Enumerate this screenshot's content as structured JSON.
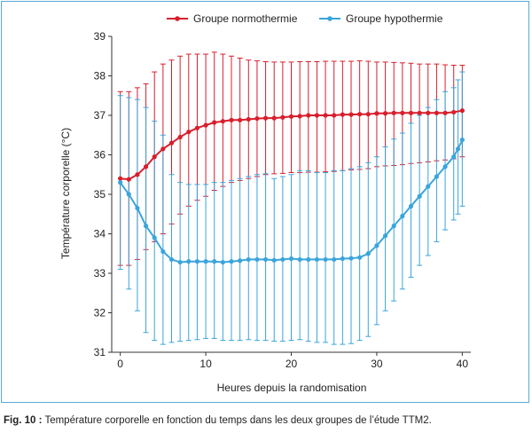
{
  "caption": {
    "label": "Fig. 10 :",
    "text": "Température corporelle en fonction du temps dans les deux groupes de l’étude TTM2."
  },
  "chart_data": {
    "type": "line",
    "title": "",
    "xlabel": "Heures depuis la randomisation",
    "ylabel": "Température corporelle (°C)",
    "xlim": [
      -1,
      41
    ],
    "ylim": [
      31,
      39
    ],
    "xticks": [
      0,
      10,
      20,
      30,
      40
    ],
    "yticks": [
      31,
      32,
      33,
      34,
      35,
      36,
      37,
      38,
      39
    ],
    "grid": false,
    "legend_position": "top",
    "x": [
      0,
      1,
      2,
      3,
      4,
      5,
      6,
      7,
      8,
      9,
      10,
      11,
      12,
      13,
      14,
      15,
      16,
      17,
      18,
      19,
      20,
      21,
      22,
      23,
      24,
      25,
      26,
      27,
      28,
      29,
      30,
      31,
      32,
      33,
      34,
      35,
      36,
      37,
      38,
      39,
      40
    ],
    "series": [
      {
        "name": "Groupe normothermie",
        "color": "#d81e2c",
        "values": [
          35.4,
          35.38,
          35.5,
          35.7,
          35.95,
          36.15,
          36.3,
          36.45,
          36.58,
          36.68,
          36.75,
          36.82,
          36.85,
          36.88,
          36.88,
          36.9,
          36.92,
          36.93,
          36.93,
          36.95,
          36.97,
          36.98,
          37.0,
          37.0,
          37.0,
          37.0,
          37.02,
          37.02,
          37.03,
          37.03,
          37.05,
          37.05,
          37.06,
          37.06,
          37.06,
          37.06,
          37.06,
          37.06,
          37.06,
          37.08,
          37.12
        ],
        "error_upper": [
          37.6,
          37.6,
          37.7,
          37.8,
          38.1,
          38.3,
          38.4,
          38.5,
          38.55,
          38.55,
          38.55,
          38.6,
          38.55,
          38.5,
          38.45,
          38.4,
          38.38,
          38.36,
          38.35,
          38.35,
          38.35,
          38.36,
          38.36,
          38.36,
          38.37,
          38.37,
          38.37,
          38.37,
          38.38,
          38.37,
          38.35,
          38.35,
          38.34,
          38.33,
          38.32,
          38.3,
          38.3,
          38.3,
          38.28,
          38.27,
          38.27
        ],
        "error_lower": [
          33.2,
          33.2,
          33.35,
          33.6,
          33.8,
          34.0,
          34.25,
          34.5,
          34.7,
          34.85,
          34.95,
          35.1,
          35.2,
          35.3,
          35.35,
          35.4,
          35.45,
          35.5,
          35.52,
          35.53,
          35.55,
          35.55,
          35.56,
          35.56,
          35.57,
          35.58,
          35.6,
          35.62,
          35.63,
          35.65,
          35.7,
          35.72,
          35.73,
          35.75,
          35.78,
          35.8,
          35.82,
          35.85,
          35.87,
          35.9,
          35.95
        ]
      },
      {
        "name": "Groupe hypothermie",
        "color": "#3aa5dc",
        "values": [
          35.3,
          35.0,
          34.65,
          34.2,
          33.9,
          33.55,
          33.35,
          33.28,
          33.3,
          33.3,
          33.3,
          33.3,
          33.28,
          33.3,
          33.32,
          33.35,
          33.35,
          33.35,
          33.33,
          33.35,
          33.37,
          33.35,
          33.35,
          33.35,
          33.35,
          33.35,
          33.37,
          33.38,
          33.4,
          33.5,
          33.7,
          33.95,
          34.2,
          34.45,
          34.7,
          34.95,
          35.2,
          35.45,
          35.7,
          35.95,
          36.15,
          36.38
        ],
        "x": [
          0,
          1,
          2,
          3,
          4,
          5,
          6,
          7,
          8,
          9,
          10,
          11,
          12,
          13,
          14,
          15,
          16,
          17,
          18,
          19,
          20,
          21,
          22,
          23,
          24,
          25,
          26,
          27,
          28,
          29,
          30,
          31,
          32,
          33,
          34,
          35,
          36,
          37,
          38,
          39,
          39.5,
          40
        ],
        "error_upper": [
          37.5,
          37.45,
          37.4,
          37.2,
          36.85,
          36.5,
          35.5,
          35.3,
          35.25,
          35.25,
          35.25,
          35.3,
          35.3,
          35.35,
          35.4,
          35.45,
          35.5,
          35.52,
          35.4,
          35.45,
          35.5,
          35.6,
          35.6,
          35.55,
          35.55,
          35.6,
          35.6,
          35.65,
          35.7,
          35.8,
          35.95,
          36.2,
          36.4,
          36.55,
          36.8,
          37.0,
          37.2,
          37.4,
          37.6,
          37.7,
          37.9,
          38.1
        ],
        "error_lower": [
          33.1,
          32.6,
          32.05,
          31.5,
          31.3,
          31.2,
          31.25,
          31.28,
          31.3,
          31.32,
          31.35,
          31.35,
          31.3,
          31.3,
          31.3,
          31.32,
          31.3,
          31.3,
          31.28,
          31.28,
          31.3,
          31.32,
          31.28,
          31.25,
          31.25,
          31.2,
          31.2,
          31.22,
          31.3,
          31.4,
          31.7,
          32.05,
          32.3,
          32.6,
          32.9,
          33.2,
          33.45,
          33.8,
          34.1,
          34.35,
          34.5,
          34.7
        ]
      }
    ]
  }
}
